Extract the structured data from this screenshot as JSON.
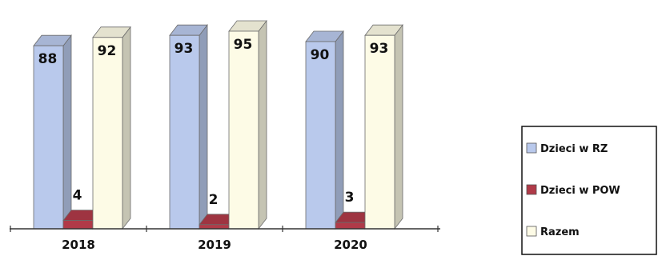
{
  "chart_data": {
    "type": "bar",
    "style": "3d-clustered-column",
    "categories": [
      "2018",
      "2019",
      "2020"
    ],
    "series": [
      {
        "name": "Dzieci w RZ",
        "values": [
          88,
          93,
          90
        ],
        "color": "#b9c9ec"
      },
      {
        "name": "Dzieci w POW",
        "values": [
          4,
          2,
          3
        ],
        "color": "#b03a48"
      },
      {
        "name": "Razem",
        "values": [
          92,
          95,
          93
        ],
        "color": "#fdfbe6"
      }
    ],
    "ylim": [
      0,
      100
    ],
    "grid": false,
    "legend": "right",
    "data_labels": true
  }
}
